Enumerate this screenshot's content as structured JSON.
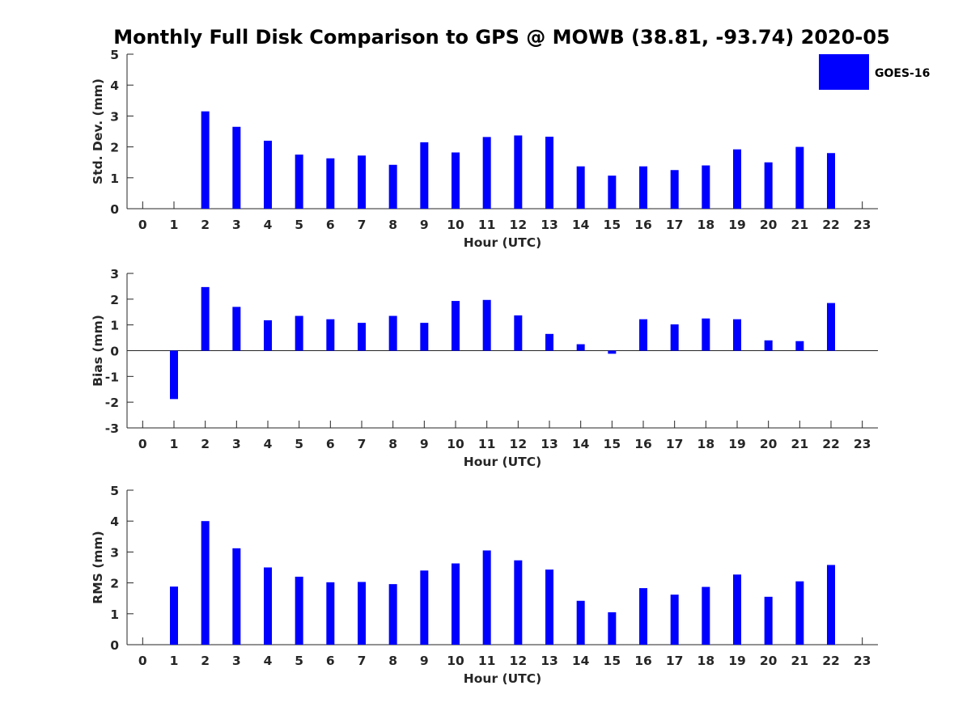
{
  "title": "Monthly Full Disk Comparison to GPS @ MOWB (38.81, -93.74) 2020-05",
  "legend": {
    "label": "GOES-16",
    "color": "#0000ff"
  },
  "chart_data": [
    {
      "type": "bar",
      "name": "stddev",
      "categories": [
        "0",
        "1",
        "2",
        "3",
        "4",
        "5",
        "6",
        "7",
        "8",
        "9",
        "10",
        "11",
        "12",
        "13",
        "14",
        "15",
        "16",
        "17",
        "18",
        "19",
        "20",
        "21",
        "22",
        "23"
      ],
      "x": [
        0,
        1,
        2,
        3,
        4,
        5,
        6,
        7,
        8,
        9,
        10,
        11,
        12,
        13,
        14,
        15,
        16,
        17,
        18,
        19,
        20,
        21,
        22,
        23
      ],
      "series": [
        {
          "name": "GOES-16",
          "color": "#0000ff",
          "values": [
            null,
            null,
            3.15,
            2.65,
            2.2,
            1.75,
            1.63,
            1.72,
            1.42,
            2.15,
            1.82,
            2.32,
            2.37,
            2.33,
            1.37,
            1.07,
            1.37,
            1.25,
            1.4,
            1.92,
            1.5,
            2.0,
            1.8,
            null
          ]
        }
      ],
      "xlabel": "Hour (UTC)",
      "ylabel": "Std. Dev. (mm)",
      "ylim": [
        0,
        5
      ],
      "yticks": [
        "0",
        "1",
        "2",
        "3",
        "4",
        "5"
      ]
    },
    {
      "type": "bar",
      "name": "bias",
      "categories": [
        "0",
        "1",
        "2",
        "3",
        "4",
        "5",
        "6",
        "7",
        "8",
        "9",
        "10",
        "11",
        "12",
        "13",
        "14",
        "15",
        "16",
        "17",
        "18",
        "19",
        "20",
        "21",
        "22",
        "23"
      ],
      "x": [
        0,
        1,
        2,
        3,
        4,
        5,
        6,
        7,
        8,
        9,
        10,
        11,
        12,
        13,
        14,
        15,
        16,
        17,
        18,
        19,
        20,
        21,
        22,
        23
      ],
      "series": [
        {
          "name": "GOES-16",
          "color": "#0000ff",
          "values": [
            null,
            -1.88,
            2.47,
            1.7,
            1.18,
            1.35,
            1.22,
            1.08,
            1.35,
            1.08,
            1.93,
            1.97,
            1.37,
            0.65,
            0.25,
            -0.12,
            1.22,
            1.02,
            1.25,
            1.22,
            0.4,
            0.37,
            1.85,
            null
          ]
        }
      ],
      "xlabel": "Hour (UTC)",
      "ylabel": "Bias (mm)",
      "ylim": [
        -3,
        3
      ],
      "yticks": [
        "-3",
        "-2",
        "-1",
        "0",
        "1",
        "2",
        "3"
      ]
    },
    {
      "type": "bar",
      "name": "rms",
      "categories": [
        "0",
        "1",
        "2",
        "3",
        "4",
        "5",
        "6",
        "7",
        "8",
        "9",
        "10",
        "11",
        "12",
        "13",
        "14",
        "15",
        "16",
        "17",
        "18",
        "19",
        "20",
        "21",
        "22",
        "23"
      ],
      "x": [
        0,
        1,
        2,
        3,
        4,
        5,
        6,
        7,
        8,
        9,
        10,
        11,
        12,
        13,
        14,
        15,
        16,
        17,
        18,
        19,
        20,
        21,
        22,
        23
      ],
      "series": [
        {
          "name": "GOES-16",
          "color": "#0000ff",
          "values": [
            null,
            1.88,
            4.0,
            3.12,
            2.5,
            2.2,
            2.02,
            2.03,
            1.96,
            2.4,
            2.63,
            3.05,
            2.73,
            2.43,
            1.42,
            1.05,
            1.83,
            1.62,
            1.87,
            2.27,
            1.55,
            2.05,
            2.58,
            null
          ]
        }
      ],
      "xlabel": "Hour (UTC)",
      "ylabel": "RMS (mm)",
      "ylim": [
        0,
        5
      ],
      "yticks": [
        "0",
        "1",
        "2",
        "3",
        "4",
        "5"
      ]
    }
  ]
}
